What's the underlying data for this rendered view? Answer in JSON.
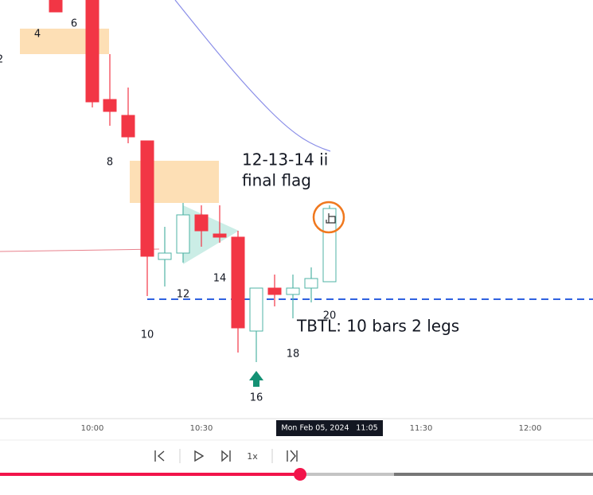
{
  "bar_labels": [
    "2",
    "4",
    "6",
    "8",
    "12",
    "14",
    "10",
    "16",
    "18",
    "20"
  ],
  "annotations": {
    "flag_line1": "12-13-14 ii",
    "flag_line2": "final flag",
    "tbtl": "TBTL: 10 bars 2 legs"
  },
  "time_axis": [
    "10:00",
    "10:30",
    "11:30",
    "12:00"
  ],
  "crosshair": {
    "date": "Mon Feb 05, 2024",
    "time": "11:05"
  },
  "player": {
    "speed": "1x"
  }
}
